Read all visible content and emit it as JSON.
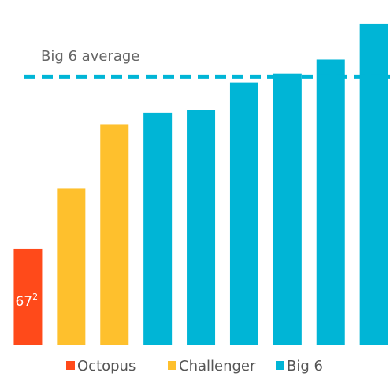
{
  "chart_data": {
    "type": "bar",
    "categories": [
      null,
      null,
      null,
      null,
      null,
      null,
      null,
      null,
      null
    ],
    "series": [
      {
        "name": "Octopus",
        "color": "#ff4a1a",
        "values": [
          67,
          null,
          null,
          null,
          null,
          null,
          null,
          null,
          null
        ],
        "value_labels": [
          "67",
          null,
          null,
          null,
          null,
          null,
          null,
          null,
          null
        ],
        "value_label_footnotes": [
          "2",
          null,
          null,
          null,
          null,
          null,
          null,
          null,
          null
        ]
      },
      {
        "name": "Challenger",
        "color": "#fec02d",
        "values": [
          null,
          109,
          154,
          null,
          null,
          null,
          null,
          null,
          null
        ]
      },
      {
        "name": "Big 6",
        "color": "#00b5d6",
        "values": [
          null,
          null,
          null,
          162,
          164,
          183,
          189,
          199,
          224
        ]
      }
    ],
    "reference_line": {
      "label": "Big 6 average",
      "value": 187,
      "color": "#00b5d6"
    },
    "ylim": [
      0,
      230
    ],
    "legend": "bottom"
  }
}
